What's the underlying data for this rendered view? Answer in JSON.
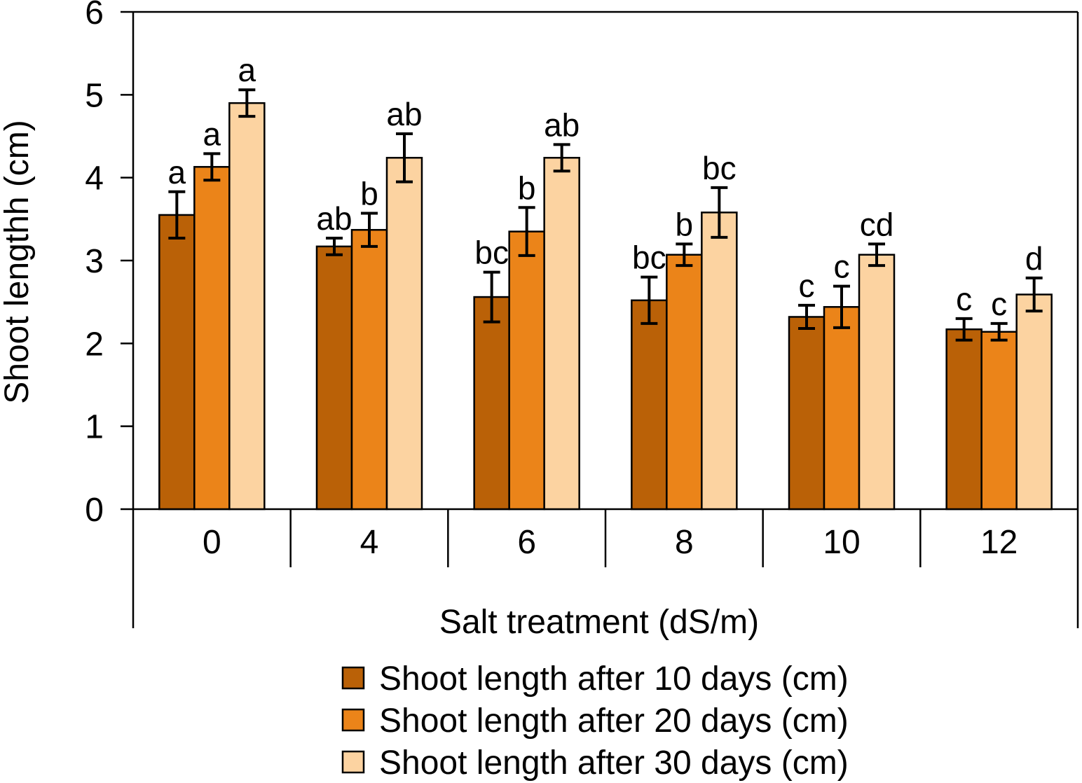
{
  "chart_data": {
    "type": "bar",
    "categories": [
      "0",
      "4",
      "6",
      "8",
      "10",
      "12"
    ],
    "xlabel": "Salt treatment (dS/m)",
    "ylabel": "Shoot lengthh (cm)",
    "ylim": [
      0,
      6
    ],
    "yticks": [
      0,
      1,
      2,
      3,
      4,
      5,
      6
    ],
    "grid": false,
    "legend_position": "bottom",
    "series": [
      {
        "name": "Shoot length after 10 days (cm)",
        "color": "#BA6107",
        "values": [
          3.55,
          3.17,
          2.56,
          2.52,
          2.32,
          2.17
        ],
        "errors": [
          0.28,
          0.1,
          0.3,
          0.28,
          0.14,
          0.13
        ],
        "letters": [
          "a",
          "ab",
          "bc",
          "bc",
          "c",
          "c"
        ]
      },
      {
        "name": "Shoot length after 20 days (cm)",
        "color": "#EB8419",
        "values": [
          4.13,
          3.37,
          3.35,
          3.07,
          2.44,
          2.14
        ],
        "errors": [
          0.16,
          0.2,
          0.29,
          0.13,
          0.25,
          0.1
        ],
        "letters": [
          "a",
          "b",
          "b",
          "b",
          "c",
          "c"
        ]
      },
      {
        "name": "Shoot length after 30 days (cm)",
        "color": "#FCD3A1",
        "values": [
          4.9,
          4.24,
          4.24,
          3.58,
          3.07,
          2.59
        ],
        "errors": [
          0.16,
          0.29,
          0.16,
          0.3,
          0.13,
          0.2
        ],
        "letters": [
          "a",
          "ab",
          "ab",
          "bc",
          "cd",
          "d"
        ]
      }
    ]
  }
}
